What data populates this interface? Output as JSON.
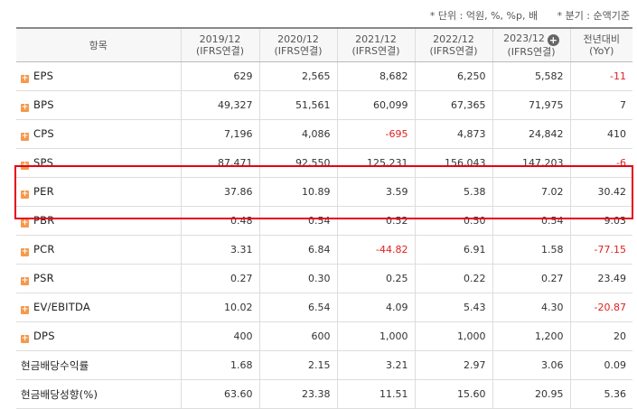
{
  "notes": {
    "unit": "* 단위 : 억원, %, %p, 배",
    "period": "* 분기 : 순액기준"
  },
  "header": {
    "item": "항목",
    "columns": [
      {
        "line1": "2019/12",
        "line2": "(IFRS연결)"
      },
      {
        "line1": "2020/12",
        "line2": "(IFRS연결)"
      },
      {
        "line1": "2021/12",
        "line2": "(IFRS연결)"
      },
      {
        "line1": "2022/12",
        "line2": "(IFRS연결)"
      },
      {
        "line1": "2023/12",
        "line2": "(IFRS연결)"
      },
      {
        "line1": "전년대비",
        "line2": "(YoY)"
      }
    ],
    "add_icon": "plus-circle-icon"
  },
  "rows": [
    {
      "label": "EPS",
      "expand": true,
      "values": [
        "629",
        "2,565",
        "8,682",
        "6,250",
        "5,582",
        "-11"
      ]
    },
    {
      "label": "BPS",
      "expand": true,
      "values": [
        "49,327",
        "51,561",
        "60,099",
        "67,365",
        "71,975",
        "7"
      ]
    },
    {
      "label": "CPS",
      "expand": true,
      "values": [
        "7,196",
        "4,086",
        "-695",
        "4,873",
        "24,842",
        "410"
      ]
    },
    {
      "label": "SPS",
      "expand": true,
      "values": [
        "87,471",
        "92,550",
        "125,231",
        "156,043",
        "147,203",
        "-6"
      ]
    },
    {
      "label": "PER",
      "expand": true,
      "values": [
        "37.86",
        "10.89",
        "3.59",
        "5.38",
        "7.02",
        "30.42"
      ]
    },
    {
      "label": "PBR",
      "expand": true,
      "values": [
        "0.48",
        "0.54",
        "0.52",
        "0.50",
        "0.54",
        "9.03"
      ]
    },
    {
      "label": "PCR",
      "expand": true,
      "values": [
        "3.31",
        "6.84",
        "-44.82",
        "6.91",
        "1.58",
        "-77.15"
      ]
    },
    {
      "label": "PSR",
      "expand": true,
      "values": [
        "0.27",
        "0.30",
        "0.25",
        "0.22",
        "0.27",
        "23.49"
      ]
    },
    {
      "label": "EV/EBITDA",
      "expand": true,
      "values": [
        "10.02",
        "6.54",
        "4.09",
        "5.43",
        "4.30",
        "-20.87"
      ]
    },
    {
      "label": "DPS",
      "expand": true,
      "values": [
        "400",
        "600",
        "1,000",
        "1,000",
        "1,200",
        "20"
      ]
    },
    {
      "label": "현금배당수익률",
      "expand": false,
      "values": [
        "1.68",
        "2.15",
        "3.21",
        "2.97",
        "3.06",
        "0.09"
      ]
    },
    {
      "label": "현금배당성향(%)",
      "expand": false,
      "values": [
        "63.60",
        "23.38",
        "11.51",
        "15.60",
        "20.95",
        "5.36"
      ]
    }
  ],
  "colors": {
    "negative": "#e02020",
    "highlight": "#e60012",
    "expand_icon": "#f59a4b"
  }
}
